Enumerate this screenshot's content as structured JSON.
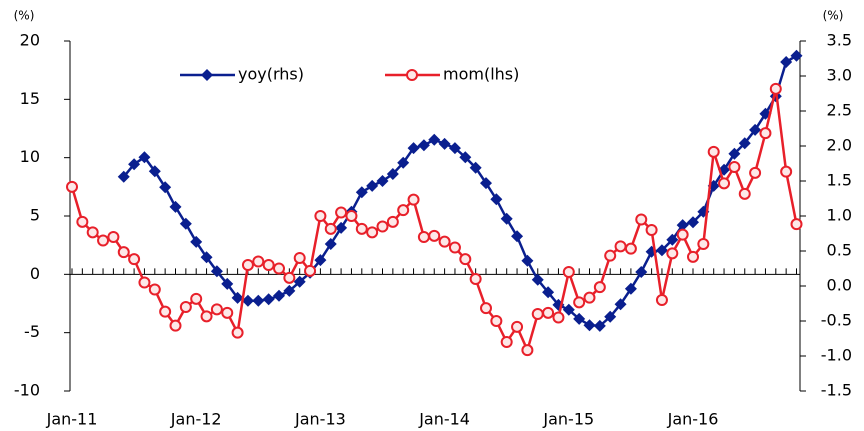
{
  "chart_data": {
    "type": "line",
    "y_unit": "(%)",
    "y2_unit": "(%)",
    "categories": [
      "Jan-11",
      null,
      null,
      null,
      null,
      null,
      null,
      null,
      null,
      null,
      null,
      null,
      "Jan-12",
      null,
      null,
      null,
      null,
      null,
      null,
      null,
      null,
      null,
      null,
      null,
      "Jan-13",
      null,
      null,
      null,
      null,
      null,
      null,
      null,
      null,
      null,
      null,
      null,
      "Jan-14",
      null,
      null,
      null,
      null,
      null,
      null,
      null,
      null,
      null,
      null,
      null,
      "Jan-15",
      null,
      null,
      null,
      null,
      null,
      null,
      null,
      null,
      null,
      null,
      null,
      "Jan-16",
      null,
      null,
      null,
      null,
      null,
      null,
      null,
      null,
      null,
      null
    ],
    "series": [
      {
        "name": "yoy(rhs)",
        "color": "#0a1f8f",
        "axis": "y2",
        "marker": "diamond",
        "values": [
          null,
          null,
          null,
          null,
          null,
          1.56,
          1.74,
          1.84,
          1.64,
          1.41,
          1.13,
          0.89,
          0.63,
          0.41,
          0.21,
          0.03,
          -0.17,
          -0.21,
          -0.21,
          -0.19,
          -0.14,
          -0.07,
          0.06,
          0.19,
          0.37,
          0.6,
          0.83,
          1.06,
          1.34,
          1.43,
          1.5,
          1.6,
          1.76,
          1.97,
          2.01,
          2.09,
          2.03,
          1.97,
          1.84,
          1.69,
          1.47,
          1.24,
          0.96,
          0.71,
          0.36,
          0.09,
          -0.09,
          -0.27,
          -0.34,
          -0.47,
          -0.56,
          -0.57,
          -0.44,
          -0.26,
          -0.04,
          0.2,
          0.49,
          0.51,
          0.66,
          0.87,
          0.91,
          1.06,
          1.43,
          1.66,
          1.89,
          2.04,
          2.23,
          2.46,
          2.71,
          3.2,
          3.29
        ]
      },
      {
        "name": "mom(lhs)",
        "color": "#e8202a",
        "axis": "y",
        "marker": "circle",
        "values": [
          7.5,
          4.5,
          3.6,
          2.9,
          3.2,
          1.9,
          1.3,
          -0.7,
          -1.3,
          -3.2,
          -4.4,
          -2.8,
          -2.1,
          -3.6,
          -3.0,
          -3.3,
          -5.0,
          0.8,
          1.1,
          0.8,
          0.5,
          -0.3,
          1.4,
          0.3,
          5.0,
          3.9,
          5.3,
          5.0,
          3.9,
          3.6,
          4.1,
          4.5,
          5.5,
          6.4,
          3.2,
          3.3,
          2.8,
          2.3,
          1.3,
          -0.4,
          -2.9,
          -4.0,
          -5.8,
          -4.5,
          -6.5,
          -3.4,
          -3.3,
          -3.7,
          0.2,
          -2.4,
          -2.0,
          -1.1,
          1.6,
          2.4,
          2.2,
          4.7,
          3.8,
          -2.2,
          1.8,
          3.4,
          1.5,
          2.6,
          10.5,
          7.8,
          9.2,
          6.9,
          8.7,
          12.1,
          15.9,
          8.8,
          4.3
        ]
      }
    ],
    "ylim": [
      -10,
      20
    ],
    "yticks": [
      -10,
      -5,
      0,
      5,
      10,
      15,
      20
    ],
    "y2lim": [
      -1.5,
      3.5
    ],
    "y2ticks": [
      -1.5,
      {
        "value": -1,
        "label": "-1.0"
      },
      -0.5,
      {
        "value": 0,
        "label": "0.0"
      },
      0.5,
      {
        "value": 1,
        "label": "1.0"
      },
      1.5,
      {
        "value": 2,
        "label": "2.0"
      },
      2.5,
      {
        "value": 3,
        "label": "3.0"
      },
      3.5
    ],
    "grid": false
  }
}
